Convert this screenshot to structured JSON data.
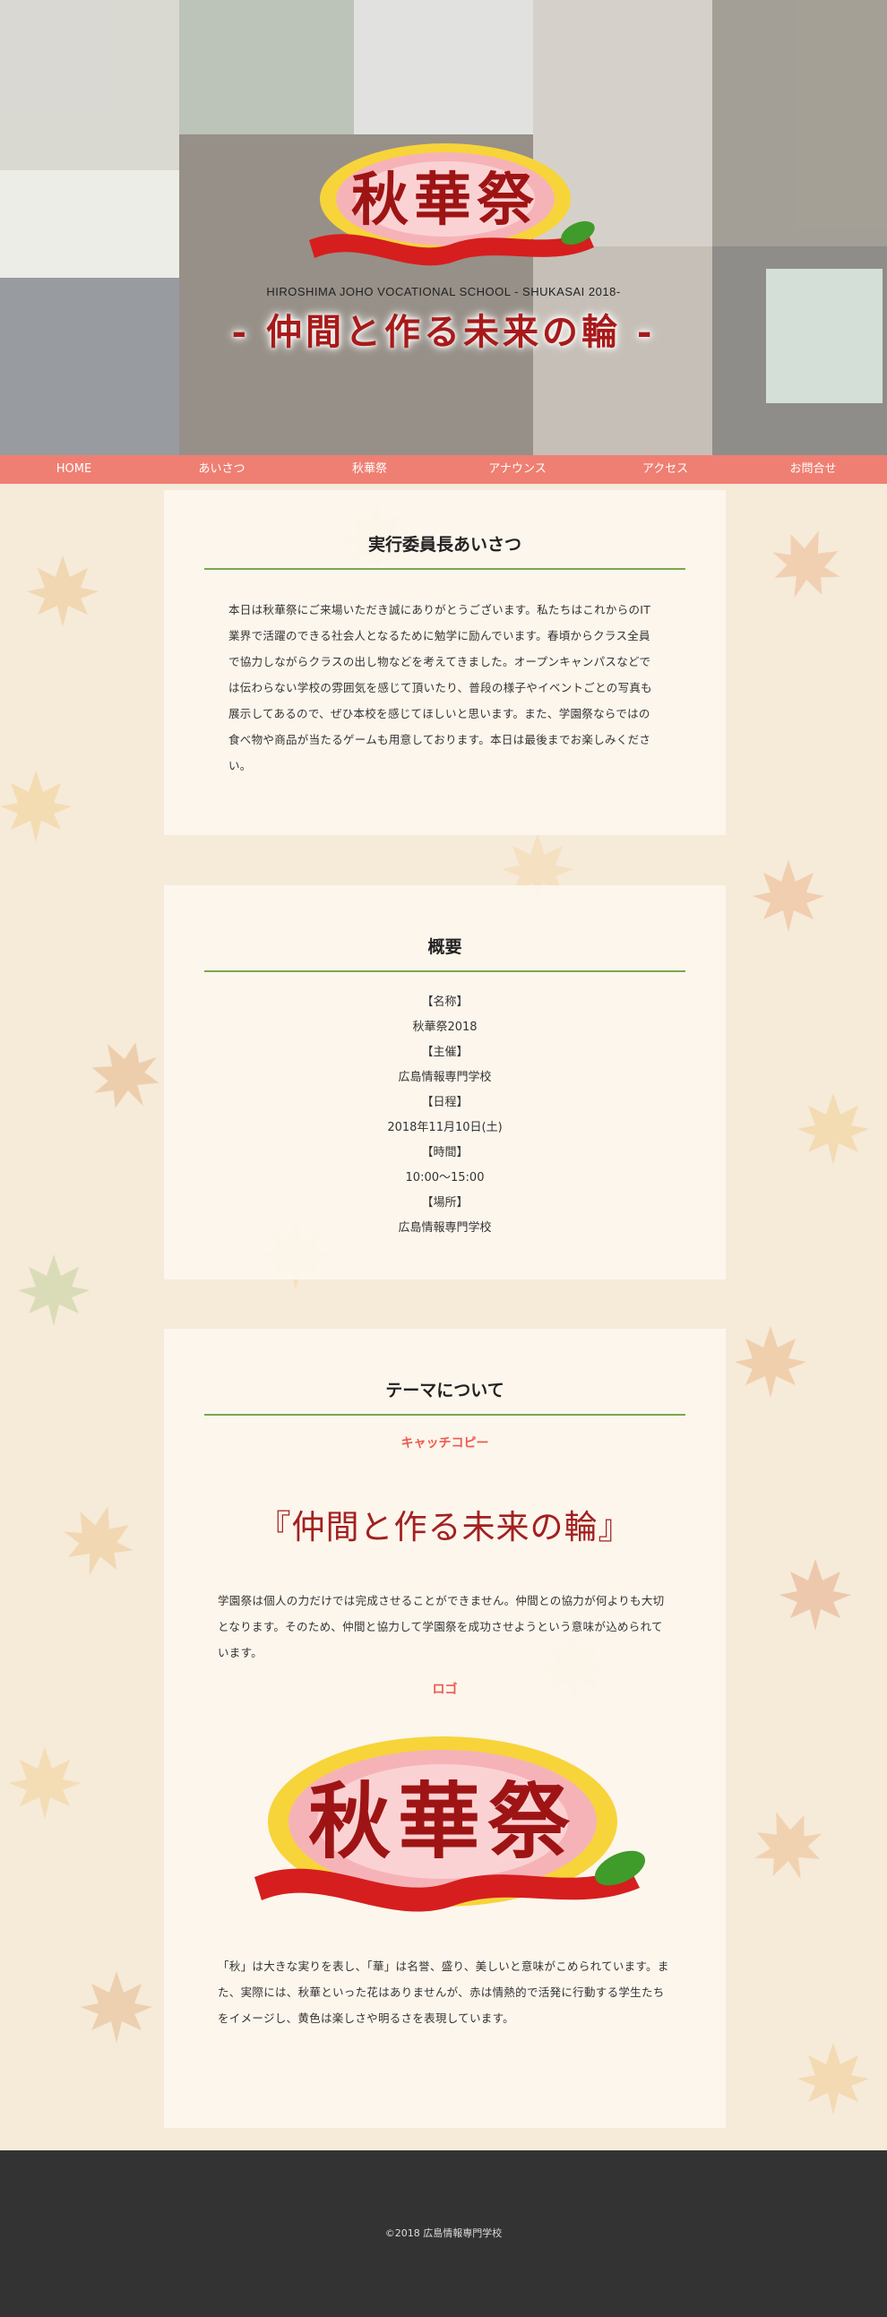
{
  "hero": {
    "logo_text": "秋華祭",
    "subtitle": "HIROSHIMA JOHO VOCATIONAL SCHOOL - SHUKASAI 2018-",
    "catch": "- 仲間と作る未来の輪 -"
  },
  "nav": {
    "items": [
      "HOME",
      "あいさつ",
      "秋華祭",
      "アナウンス",
      "アクセス",
      "お問合せ"
    ]
  },
  "greeting": {
    "title": "実行委員長あいさつ",
    "body": "本日は秋華祭にご来場いただき誠にありがとうございます。私たちはこれからのIT業界で活躍のできる社会人となるために勉学に励んでいます。春頃からクラス全員で協力しながらクラスの出し物などを考えてきました。オープンキャンパスなどでは伝わらない学校の雰囲気を感じて頂いたり、普段の様子やイベントごとの写真も展示してあるので、ぜひ本校を感じてほしいと思います。また、学園祭ならではの食べ物や商品が当たるゲームも用意しております。本日は最後までお楽しみください。"
  },
  "overview": {
    "title": "概要",
    "rows": [
      "【名称】",
      "秋華祭2018",
      "【主催】",
      "広島情報専門学校",
      "【日程】",
      "2018年11月10日(土)",
      "【時間】",
      "10:00～15:00",
      "【場所】",
      "広島情報専門学校"
    ]
  },
  "theme": {
    "title": "テーマについて",
    "catch_heading": "キャッチコピー",
    "catch": "『仲間と作る未来の輪』",
    "catch_body": "学園祭は個人の力だけでは完成させることができません。仲間との協力が何よりも大切となります。そのため、仲間と協力して学園祭を成功させようという意味が込められています。",
    "logo_heading": "ロゴ",
    "logo_text": "秋華祭",
    "logo_body": "「秋」は大きな実りを表し、「華」は名誉、盛り、美しいと意味がこめられています。また、実際には、秋華といった花はありませんが、赤は情熱的で活発に行動する学生たちをイメージし、黄色は楽しさや明るさを表現しています。"
  },
  "footer": {
    "copyright": "©2018 広島情報専門学校"
  },
  "colors": {
    "nav": "#ef7f72",
    "accent_red": "#a81a1a",
    "underline": "#7aa84f",
    "footer": "#333333"
  }
}
